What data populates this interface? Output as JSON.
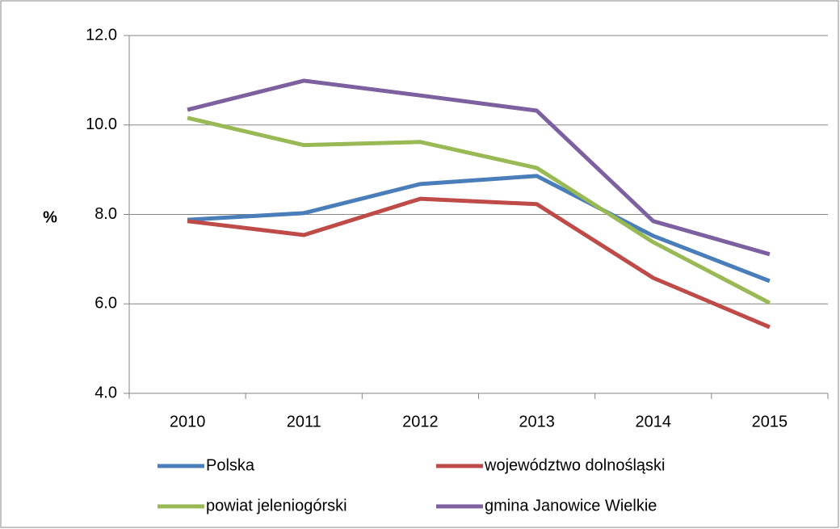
{
  "chart_data": {
    "type": "line",
    "y_label": "%",
    "categories": [
      "2010",
      "2011",
      "2012",
      "2013",
      "2014",
      "2015"
    ],
    "series": [
      {
        "name": "Polska",
        "color": "#4a7ebb",
        "values": [
          7.88,
          8.03,
          8.68,
          8.86,
          7.52,
          6.51
        ]
      },
      {
        "name": "województwo dolnośląski",
        "color": "#be4b48",
        "values": [
          7.85,
          7.54,
          8.35,
          8.23,
          6.58,
          5.48
        ]
      },
      {
        "name": "powiat jeleniogórski",
        "color": "#98b954",
        "values": [
          10.16,
          9.55,
          9.62,
          9.04,
          7.38,
          6.02
        ]
      },
      {
        "name": "gmina Janowice Wielkie",
        "color": "#7d60a0",
        "values": [
          10.34,
          10.99,
          10.66,
          10.32,
          7.85,
          7.11
        ]
      }
    ],
    "ylim": [
      4,
      12
    ],
    "yticks": [
      {
        "value": 4,
        "label": "4.0"
      },
      {
        "value": 6,
        "label": "6.0"
      },
      {
        "value": 8,
        "label": "8.0"
      },
      {
        "value": 10,
        "label": "10.0"
      },
      {
        "value": 12,
        "label": "12.0"
      }
    ],
    "grid": true
  }
}
